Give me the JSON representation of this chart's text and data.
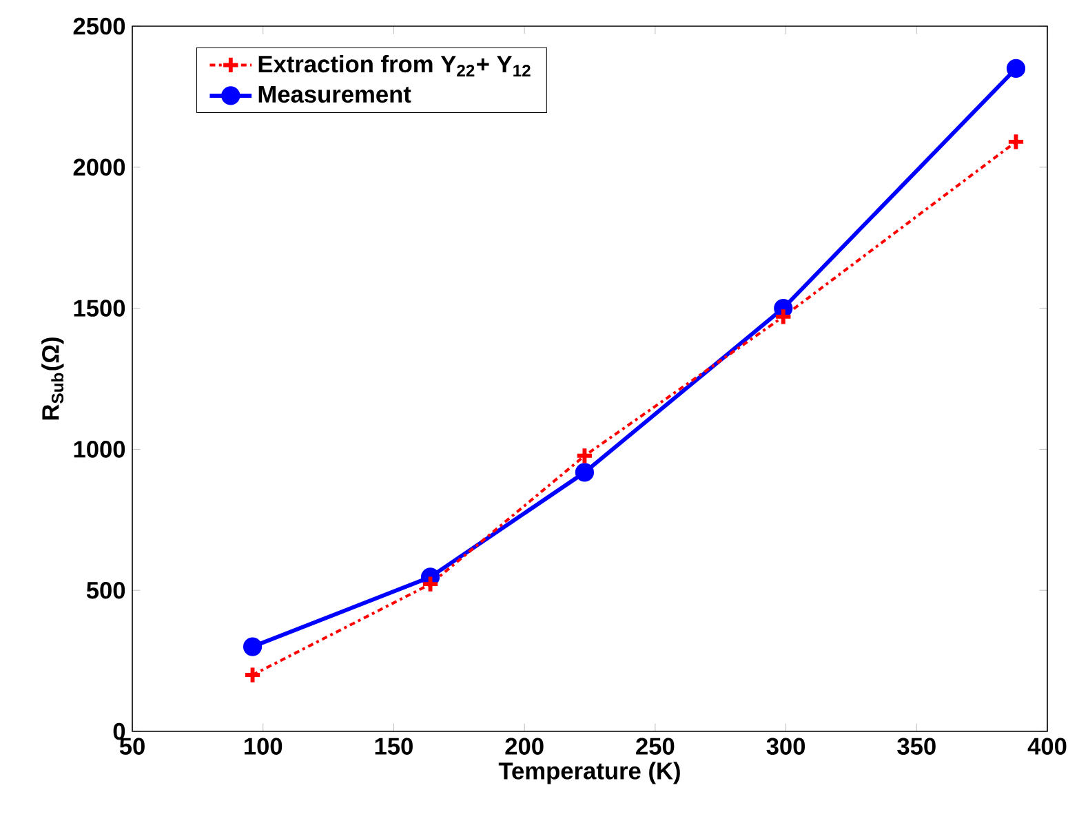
{
  "chart_data": {
    "type": "line",
    "xlabel": "Temperature (K)",
    "ylabel": "R$_{Sub}$(Ω)",
    "xlim": [
      50,
      400
    ],
    "xticks": [
      50,
      100,
      150,
      200,
      250,
      300,
      350,
      400
    ],
    "ylim": [
      0,
      2500
    ],
    "yticks": [
      0,
      500,
      1000,
      1500,
      2000,
      2500
    ],
    "legend": "top left",
    "grid": false,
    "series": [
      {
        "name": "Extraction from Y$_{22}$+ Y$_{12}$",
        "color": "#ff0000",
        "marker": "cross",
        "line_style": "dashed",
        "x": [
          96,
          164,
          223,
          299,
          388
        ],
        "values": [
          200,
          522,
          977,
          1470,
          2090
        ]
      },
      {
        "name": "Measurement",
        "color": "#0000ff",
        "marker": "circle",
        "line_style": "solid",
        "x": [
          96,
          164,
          223,
          299,
          388
        ],
        "values": [
          300,
          547,
          918,
          1500,
          2350
        ]
      }
    ]
  }
}
